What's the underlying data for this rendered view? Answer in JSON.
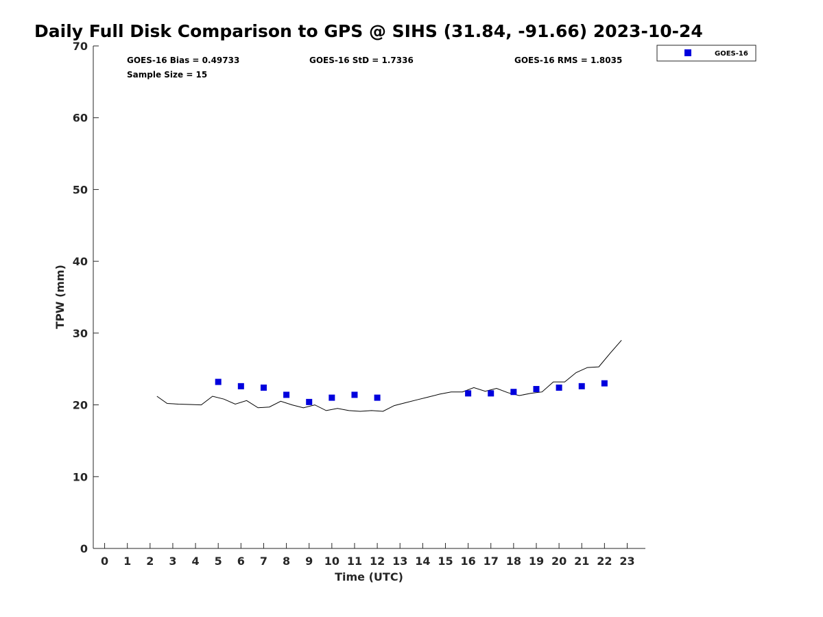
{
  "chart_data": {
    "type": "scatter",
    "title": "Daily Full Disk Comparison to GPS @ SIHS (31.84, -91.66) 2023-10-24",
    "xlabel": "Time (UTC)",
    "ylabel": "TPW (mm)",
    "xlim": [
      -0.5,
      23.8
    ],
    "ylim": [
      0,
      70
    ],
    "xticks": [
      0,
      1,
      2,
      3,
      4,
      5,
      6,
      7,
      8,
      9,
      10,
      11,
      12,
      13,
      14,
      15,
      16,
      17,
      18,
      19,
      20,
      21,
      22,
      23
    ],
    "yticks": [
      0,
      10,
      20,
      30,
      40,
      50,
      60,
      70
    ],
    "grid": false,
    "legend_position": "top-right",
    "stats": {
      "bias": "GOES-16 Bias = 0.49733",
      "std": "GOES-16 StD = 1.7336",
      "rms": "GOES-16 RMS = 1.8035",
      "sample": "Sample Size = 15"
    },
    "series": [
      {
        "name": "GOES-16",
        "kind": "scatter",
        "marker": "square",
        "color": "#0000dd",
        "x": [
          5,
          6,
          7,
          8,
          9,
          10,
          11,
          12,
          16,
          17,
          18,
          19,
          20,
          21,
          22
        ],
        "y": [
          23.2,
          22.6,
          22.4,
          21.4,
          20.4,
          21.0,
          21.4,
          21.0,
          21.6,
          21.6,
          21.8,
          22.2,
          22.4,
          22.6,
          23.0
        ]
      },
      {
        "kind": "line",
        "color": "#000000",
        "x": [
          2.3,
          2.75,
          3.25,
          3.75,
          4.25,
          4.75,
          5.25,
          5.75,
          6.25,
          6.75,
          7.25,
          7.75,
          8.25,
          8.75,
          9.25,
          9.75,
          10.25,
          10.75,
          11.25,
          11.75,
          12.25,
          12.75,
          13.25,
          13.75,
          14.25,
          14.75,
          15.25,
          15.75,
          16.25,
          16.75,
          17.25,
          17.75,
          18.25,
          18.75,
          19.25,
          19.75,
          20.25,
          20.75,
          21.25,
          21.75,
          22.25,
          22.75
        ],
        "y": [
          21.2,
          20.2,
          20.1,
          20.05,
          20.0,
          21.2,
          20.8,
          20.1,
          20.6,
          19.6,
          19.7,
          20.5,
          20.0,
          19.6,
          20.0,
          19.2,
          19.5,
          19.2,
          19.1,
          19.2,
          19.1,
          19.9,
          20.3,
          20.7,
          21.1,
          21.5,
          21.8,
          21.8,
          22.4,
          21.9,
          22.3,
          21.7,
          21.3,
          21.6,
          21.8,
          23.2,
          23.2,
          24.5,
          25.2,
          25.3,
          27.2,
          29.0
        ]
      }
    ]
  }
}
